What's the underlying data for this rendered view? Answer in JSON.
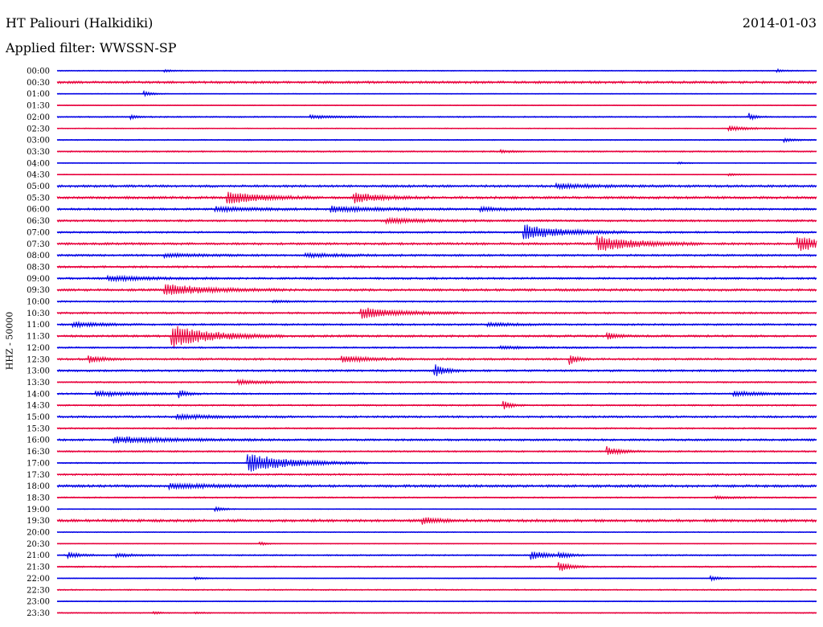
{
  "header": {
    "station": "HT Paliouri (Halkidiki)",
    "date": "2014-01-03",
    "filter": "Applied filter: WWSSN-SP"
  },
  "channel_label": "HHZ - 50000",
  "colors": {
    "trace_a": "#0000e6",
    "trace_b": "#e8003c"
  },
  "chart_data": {
    "type": "helicorder",
    "row_interval_minutes": 30,
    "x_range_minutes": [
      0,
      30
    ],
    "rows": [
      {
        "time": "00:00",
        "noise": 0.6,
        "events": [
          {
            "t": 4.2,
            "amp": 1.5,
            "dur": 0.4
          },
          {
            "t": 28.4,
            "amp": 2.0,
            "dur": 0.3
          }
        ]
      },
      {
        "time": "00:30",
        "noise": 1.5,
        "events": []
      },
      {
        "time": "01:00",
        "noise": 0.5,
        "events": [
          {
            "t": 3.4,
            "amp": 3.5,
            "dur": 0.3
          }
        ]
      },
      {
        "time": "01:30",
        "noise": 0.5,
        "events": []
      },
      {
        "time": "02:00",
        "noise": 0.8,
        "events": [
          {
            "t": 2.9,
            "amp": 2.5,
            "dur": 0.3
          },
          {
            "t": 10.0,
            "amp": 2.0,
            "dur": 1.2
          },
          {
            "t": 27.3,
            "amp": 5.0,
            "dur": 0.25
          }
        ]
      },
      {
        "time": "02:30",
        "noise": 0.6,
        "events": [
          {
            "t": 26.5,
            "amp": 3.0,
            "dur": 0.8
          }
        ]
      },
      {
        "time": "03:00",
        "noise": 0.7,
        "events": [
          {
            "t": 28.7,
            "amp": 2.5,
            "dur": 0.4
          }
        ]
      },
      {
        "time": "03:30",
        "noise": 0.9,
        "events": [
          {
            "t": 17.5,
            "amp": 1.5,
            "dur": 0.5
          }
        ]
      },
      {
        "time": "04:00",
        "noise": 0.5,
        "events": [
          {
            "t": 24.5,
            "amp": 1.2,
            "dur": 0.4
          }
        ]
      },
      {
        "time": "04:30",
        "noise": 0.5,
        "events": [
          {
            "t": 26.5,
            "amp": 2.0,
            "dur": 0.4
          }
        ]
      },
      {
        "time": "05:00",
        "noise": 1.5,
        "events": [
          {
            "t": 19.7,
            "amp": 2.5,
            "dur": 1.5
          }
        ]
      },
      {
        "time": "05:30",
        "noise": 1.6,
        "events": [
          {
            "t": 6.7,
            "amp": 8.0,
            "dur": 1.2
          },
          {
            "t": 11.7,
            "amp": 6.0,
            "dur": 1.0
          }
        ]
      },
      {
        "time": "06:00",
        "noise": 1.3,
        "events": [
          {
            "t": 6.2,
            "amp": 3.0,
            "dur": 1.6
          },
          {
            "t": 10.8,
            "amp": 3.5,
            "dur": 1.8
          },
          {
            "t": 16.7,
            "amp": 2.5,
            "dur": 0.8
          }
        ]
      },
      {
        "time": "06:30",
        "noise": 1.3,
        "events": [
          {
            "t": 13.0,
            "amp": 3.0,
            "dur": 1.4
          }
        ]
      },
      {
        "time": "07:00",
        "noise": 1.2,
        "events": [
          {
            "t": 18.4,
            "amp": 10.0,
            "dur": 1.4
          }
        ]
      },
      {
        "time": "07:30",
        "noise": 1.5,
        "events": [
          {
            "t": 21.3,
            "amp": 10.0,
            "dur": 1.4
          },
          {
            "t": 29.2,
            "amp": 9.0,
            "dur": 1.4
          }
        ]
      },
      {
        "time": "08:00",
        "noise": 1.3,
        "events": [
          {
            "t": 4.2,
            "amp": 2.0,
            "dur": 1.5
          },
          {
            "t": 9.8,
            "amp": 2.0,
            "dur": 1.5
          }
        ]
      },
      {
        "time": "08:30",
        "noise": 1.3,
        "events": []
      },
      {
        "time": "09:00",
        "noise": 1.3,
        "events": [
          {
            "t": 2.0,
            "amp": 3.0,
            "dur": 1.6
          }
        ]
      },
      {
        "time": "09:30",
        "noise": 1.5,
        "events": [
          {
            "t": 4.2,
            "amp": 7.0,
            "dur": 1.6
          }
        ]
      },
      {
        "time": "10:00",
        "noise": 1.0,
        "events": [
          {
            "t": 8.5,
            "amp": 1.5,
            "dur": 0.5
          }
        ]
      },
      {
        "time": "10:30",
        "noise": 1.2,
        "events": [
          {
            "t": 12.0,
            "amp": 7.0,
            "dur": 1.4
          }
        ]
      },
      {
        "time": "11:00",
        "noise": 1.2,
        "events": [
          {
            "t": 0.6,
            "amp": 3.0,
            "dur": 1.0
          },
          {
            "t": 17.0,
            "amp": 2.0,
            "dur": 1.0
          }
        ]
      },
      {
        "time": "11:30",
        "noise": 1.4,
        "events": [
          {
            "t": 4.5,
            "amp": 14.0,
            "dur": 1.5
          },
          {
            "t": 21.7,
            "amp": 4.0,
            "dur": 0.4
          }
        ]
      },
      {
        "time": "12:00",
        "noise": 1.0,
        "events": [
          {
            "t": 17.5,
            "amp": 1.5,
            "dur": 1.2
          }
        ]
      },
      {
        "time": "12:30",
        "noise": 1.3,
        "events": [
          {
            "t": 1.2,
            "amp": 5.0,
            "dur": 0.5
          },
          {
            "t": 11.2,
            "amp": 4.0,
            "dur": 1.0
          },
          {
            "t": 20.2,
            "amp": 8.0,
            "dur": 0.3
          }
        ]
      },
      {
        "time": "13:00",
        "noise": 1.3,
        "events": [
          {
            "t": 14.9,
            "amp": 8.0,
            "dur": 0.4
          }
        ]
      },
      {
        "time": "13:30",
        "noise": 1.0,
        "events": [
          {
            "t": 7.1,
            "amp": 2.5,
            "dur": 1.2
          }
        ]
      },
      {
        "time": "14:00",
        "noise": 1.0,
        "events": [
          {
            "t": 1.5,
            "amp": 3.0,
            "dur": 1.5
          },
          {
            "t": 4.8,
            "amp": 5.0,
            "dur": 0.3
          },
          {
            "t": 26.7,
            "amp": 3.0,
            "dur": 1.2
          }
        ]
      },
      {
        "time": "14:30",
        "noise": 1.0,
        "events": [
          {
            "t": 17.6,
            "amp": 6.0,
            "dur": 0.3
          }
        ]
      },
      {
        "time": "15:00",
        "noise": 1.3,
        "events": [
          {
            "t": 4.7,
            "amp": 2.5,
            "dur": 1.6
          }
        ]
      },
      {
        "time": "15:30",
        "noise": 1.0,
        "events": []
      },
      {
        "time": "16:00",
        "noise": 1.3,
        "events": [
          {
            "t": 2.2,
            "amp": 4.0,
            "dur": 2.2
          }
        ]
      },
      {
        "time": "16:30",
        "noise": 1.0,
        "events": [
          {
            "t": 21.7,
            "amp": 6.0,
            "dur": 0.5
          }
        ]
      },
      {
        "time": "17:00",
        "noise": 0.8,
        "events": [
          {
            "t": 7.5,
            "amp": 12.0,
            "dur": 1.6
          }
        ]
      },
      {
        "time": "17:30",
        "noise": 1.2,
        "events": []
      },
      {
        "time": "18:00",
        "noise": 1.6,
        "events": [
          {
            "t": 4.4,
            "amp": 3.0,
            "dur": 1.6
          }
        ]
      },
      {
        "time": "18:30",
        "noise": 0.9,
        "events": [
          {
            "t": 26.0,
            "amp": 1.5,
            "dur": 0.8
          }
        ]
      },
      {
        "time": "19:00",
        "noise": 0.5,
        "events": [
          {
            "t": 6.2,
            "amp": 4.0,
            "dur": 0.3
          }
        ]
      },
      {
        "time": "19:30",
        "noise": 1.7,
        "events": [
          {
            "t": 14.4,
            "amp": 4.0,
            "dur": 0.6
          }
        ]
      },
      {
        "time": "20:00",
        "noise": 0.6,
        "events": []
      },
      {
        "time": "20:30",
        "noise": 0.5,
        "events": [
          {
            "t": 8.0,
            "amp": 2.0,
            "dur": 0.3
          }
        ]
      },
      {
        "time": "21:00",
        "noise": 0.9,
        "events": [
          {
            "t": 0.4,
            "amp": 3.5,
            "dur": 0.5
          },
          {
            "t": 2.3,
            "amp": 2.0,
            "dur": 0.8
          },
          {
            "t": 18.7,
            "amp": 6.0,
            "dur": 0.6
          },
          {
            "t": 19.8,
            "amp": 3.0,
            "dur": 0.5
          }
        ]
      },
      {
        "time": "21:30",
        "noise": 0.9,
        "events": [
          {
            "t": 19.8,
            "amp": 7.0,
            "dur": 0.4
          }
        ]
      },
      {
        "time": "22:00",
        "noise": 0.5,
        "events": [
          {
            "t": 5.4,
            "amp": 2.0,
            "dur": 0.3
          },
          {
            "t": 25.8,
            "amp": 3.0,
            "dur": 0.4
          }
        ]
      },
      {
        "time": "22:30",
        "noise": 0.8,
        "events": []
      },
      {
        "time": "23:00",
        "noise": 0.6,
        "events": []
      },
      {
        "time": "23:30",
        "noise": 0.7,
        "events": [
          {
            "t": 3.8,
            "amp": 1.5,
            "dur": 0.3
          },
          {
            "t": 5.4,
            "amp": 1.2,
            "dur": 0.3
          }
        ]
      }
    ]
  }
}
